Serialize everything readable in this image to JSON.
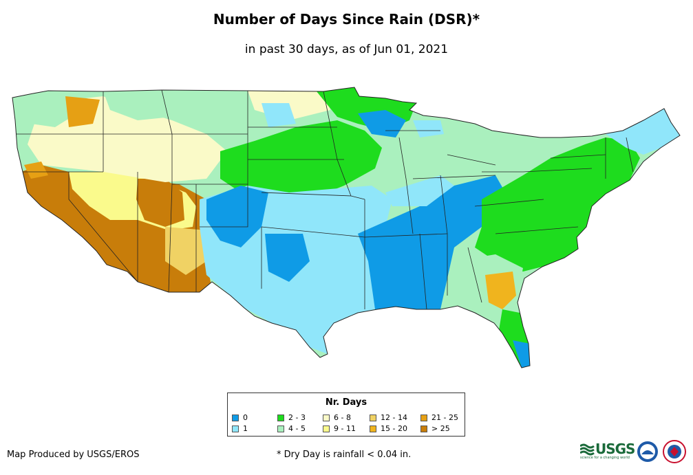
{
  "title": "Number of Days Since Rain (DSR)*",
  "subtitle": "in past 30 days, as of Jun 01, 2021",
  "legend": {
    "title": "Nr. Days",
    "items": [
      {
        "label": "0",
        "color": "#0f9be6"
      },
      {
        "label": "1",
        "color": "#90e6fa"
      },
      {
        "label": "2 - 3",
        "color": "#1edc1e"
      },
      {
        "label": "4 - 5",
        "color": "#aaf0be"
      },
      {
        "label": "6 - 8",
        "color": "#fafac8"
      },
      {
        "label": "9 - 11",
        "color": "#fafa8c"
      },
      {
        "label": "12 - 14",
        "color": "#f0d264"
      },
      {
        "label": "15 - 20",
        "color": "#f0b41e"
      },
      {
        "label": "21 - 25",
        "color": "#e6a014"
      },
      {
        "label": "> 25",
        "color": "#c87d0a"
      }
    ]
  },
  "credit": "Map Produced by USGS/EROS",
  "footnote": "* Dry Day is rainfall < 0.04 in.",
  "logos": {
    "usgs": "USGS",
    "usgs_tagline": "science for a changing world",
    "noaa": "noaa-logo",
    "nws": "nws-logo"
  }
}
